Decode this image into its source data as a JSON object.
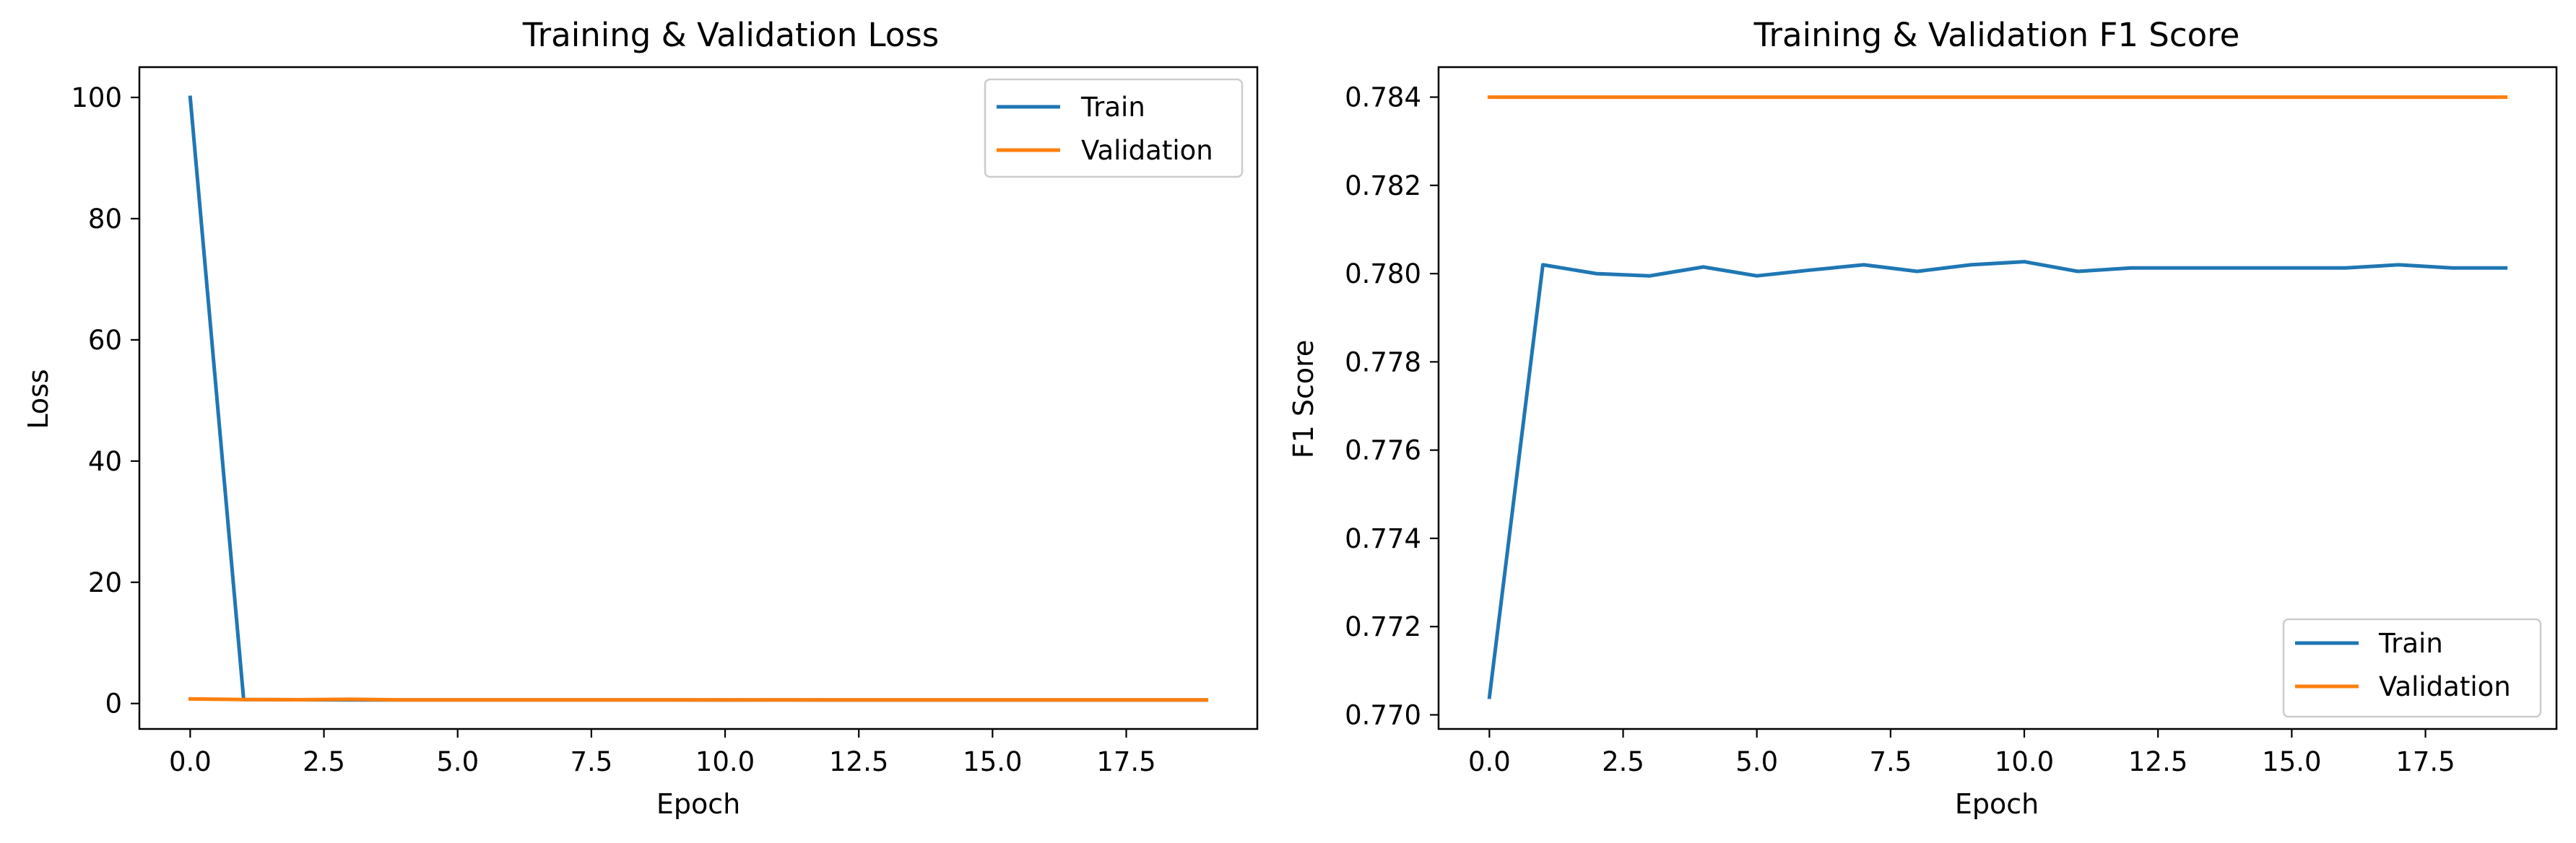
{
  "colors": {
    "train": "#1f77b4",
    "validation": "#ff7f0e",
    "axes": "#000000",
    "legend_border": "#cccccc"
  },
  "chart_data": [
    {
      "type": "line",
      "title": "Training & Validation Loss",
      "xlabel": "Epoch",
      "ylabel": "Loss",
      "xlim": [
        -0.95,
        19.95
      ],
      "ylim": [
        -4.2,
        105.0
      ],
      "xticks": [
        0,
        2.5,
        5,
        7.5,
        10,
        12.5,
        15,
        17.5
      ],
      "xtick_labels": [
        "0.0",
        "2.5",
        "5.0",
        "7.5",
        "10.0",
        "12.5",
        "15.0",
        "17.5"
      ],
      "yticks": [
        0,
        20,
        40,
        60,
        80,
        100
      ],
      "ytick_labels": [
        "0",
        "20",
        "40",
        "60",
        "80",
        "100"
      ],
      "grid": false,
      "legend_position": "upper-right",
      "x": [
        0,
        1,
        2,
        3,
        4,
        5,
        6,
        7,
        8,
        9,
        10,
        11,
        12,
        13,
        14,
        15,
        16,
        17,
        18,
        19
      ],
      "series": [
        {
          "name": "Train",
          "color": "#1f77b4",
          "values": [
            100.0,
            0.65,
            0.62,
            0.6,
            0.6,
            0.59,
            0.59,
            0.59,
            0.59,
            0.59,
            0.58,
            0.59,
            0.58,
            0.58,
            0.58,
            0.58,
            0.58,
            0.58,
            0.58,
            0.58
          ]
        },
        {
          "name": "Validation",
          "color": "#ff7f0e",
          "values": [
            0.75,
            0.65,
            0.62,
            0.7,
            0.6,
            0.6,
            0.6,
            0.6,
            0.6,
            0.6,
            0.6,
            0.6,
            0.6,
            0.6,
            0.6,
            0.6,
            0.6,
            0.6,
            0.6,
            0.6
          ]
        }
      ]
    },
    {
      "type": "line",
      "title": "Training & Validation F1 Score",
      "xlabel": "Epoch",
      "ylabel": "F1 Score",
      "xlim": [
        -0.95,
        19.95
      ],
      "ylim": [
        0.76968,
        0.78468
      ],
      "xticks": [
        0,
        2.5,
        5,
        7.5,
        10,
        12.5,
        15,
        17.5
      ],
      "xtick_labels": [
        "0.0",
        "2.5",
        "5.0",
        "7.5",
        "10.0",
        "12.5",
        "15.0",
        "17.5"
      ],
      "yticks": [
        0.77,
        0.772,
        0.774,
        0.776,
        0.778,
        0.78,
        0.782,
        0.784
      ],
      "ytick_labels": [
        "0.770",
        "0.772",
        "0.774",
        "0.776",
        "0.778",
        "0.780",
        "0.782",
        "0.784"
      ],
      "grid": false,
      "legend_position": "lower-right",
      "x": [
        0,
        1,
        2,
        3,
        4,
        5,
        6,
        7,
        8,
        9,
        10,
        11,
        12,
        13,
        14,
        15,
        16,
        17,
        18,
        19
      ],
      "series": [
        {
          "name": "Train",
          "color": "#1f77b4",
          "values": [
            0.7704,
            0.7802,
            0.78,
            0.77995,
            0.78015,
            0.77995,
            0.78008,
            0.7802,
            0.78005,
            0.7802,
            0.78027,
            0.78005,
            0.78013,
            0.78013,
            0.78013,
            0.78013,
            0.78013,
            0.7802,
            0.78013,
            0.78013
          ]
        },
        {
          "name": "Validation",
          "color": "#ff7f0e",
          "values": [
            0.784,
            0.784,
            0.784,
            0.784,
            0.784,
            0.784,
            0.784,
            0.784,
            0.784,
            0.784,
            0.784,
            0.784,
            0.784,
            0.784,
            0.784,
            0.784,
            0.784,
            0.784,
            0.784,
            0.784
          ]
        }
      ]
    }
  ]
}
